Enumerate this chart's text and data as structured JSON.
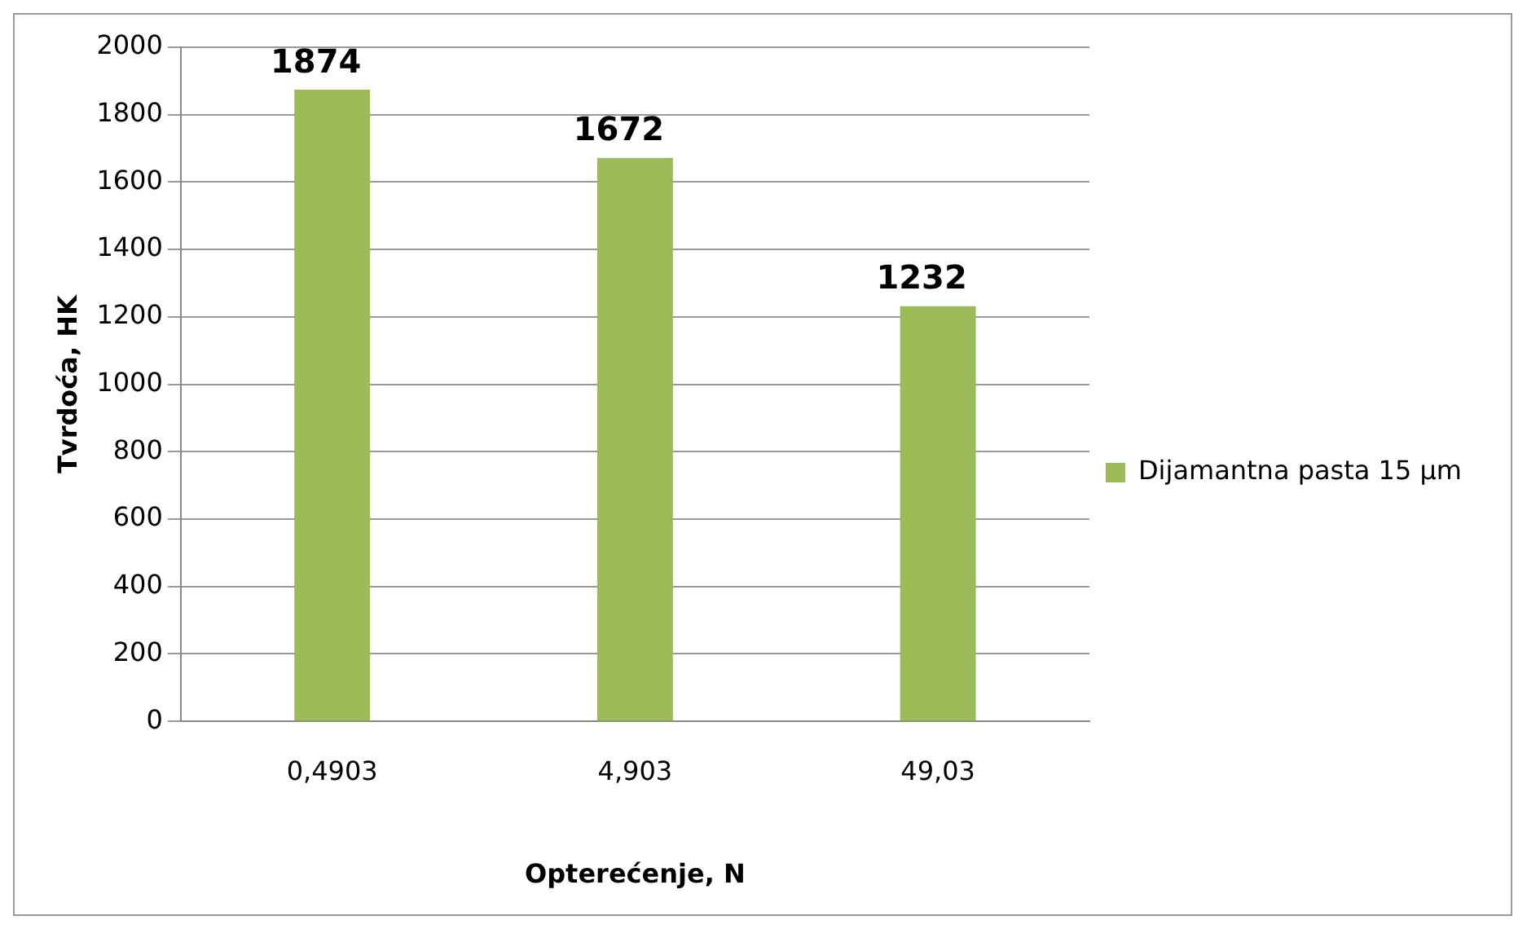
{
  "chart_data": {
    "type": "bar",
    "xlabel": "Opterećenje, N",
    "ylabel": "Tvrdoća, HK",
    "categories": [
      "0,4903",
      "4,903",
      "49,03"
    ],
    "series": [
      {
        "name": "Dijamantna pasta 15 µm",
        "color": "#9bbb59",
        "values": [
          1874,
          1672,
          1232
        ]
      }
    ],
    "ylim": [
      0,
      2000
    ],
    "yticks": [
      0,
      200,
      400,
      600,
      800,
      1000,
      1200,
      1400,
      1600,
      1800,
      2000
    ],
    "grid": "y",
    "legend": "right",
    "data_labels": true
  }
}
